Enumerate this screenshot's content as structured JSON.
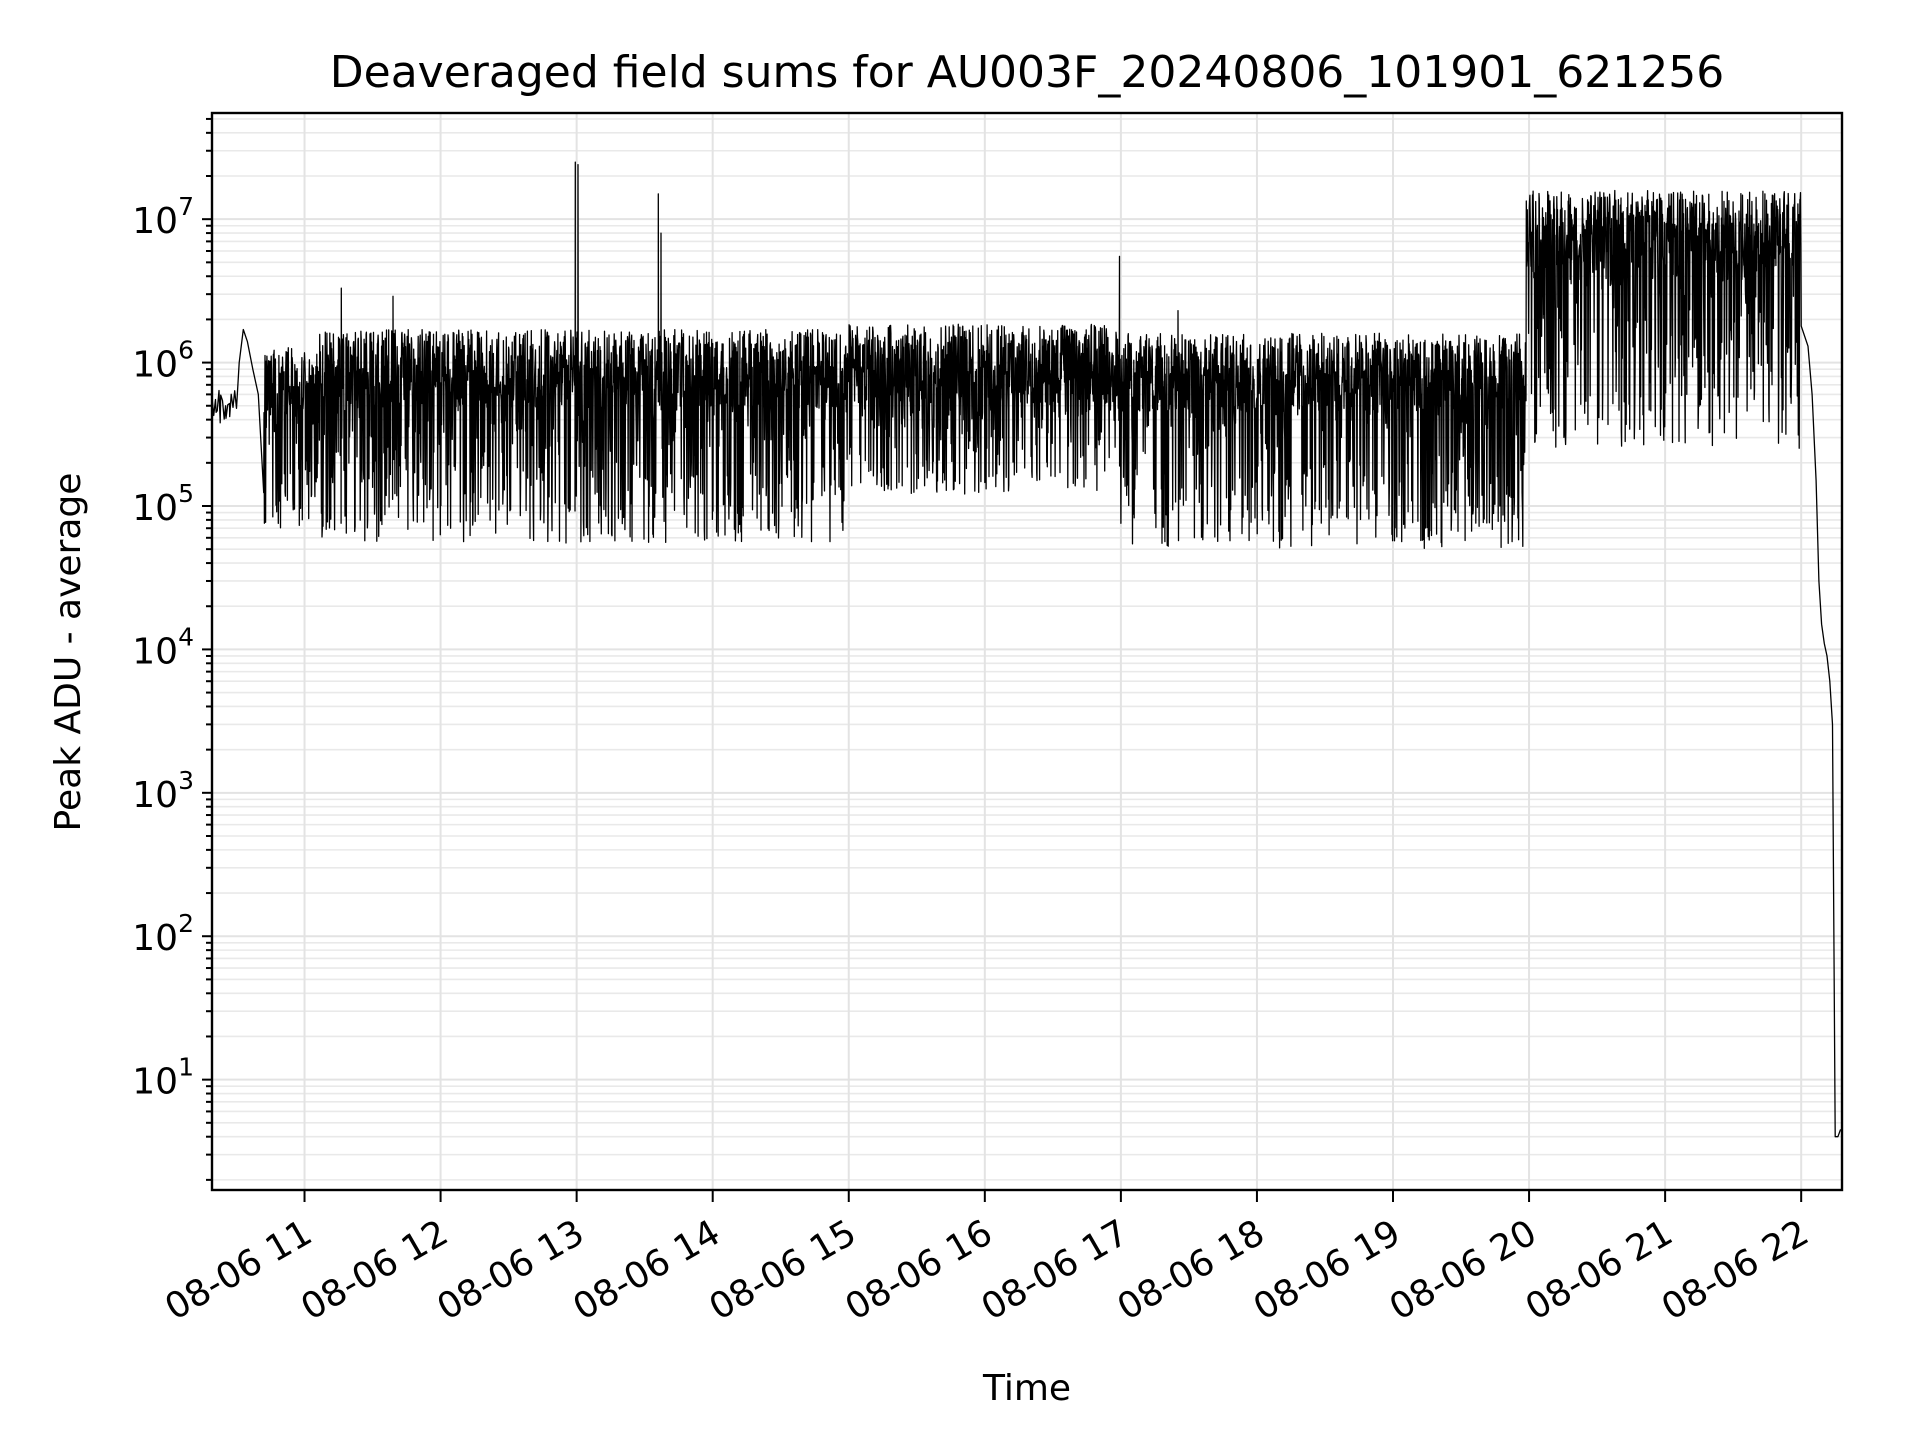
{
  "chart_data": {
    "type": "line",
    "title": "Deaveraged field sums for AU003F_20240806_101901_621256",
    "xlabel": "Time",
    "ylabel": "Peak ADU - average",
    "yscale": "log",
    "ylim": [
      1.7,
      55000000
    ],
    "xlim_hours": [
      10.32,
      22.3
    ],
    "grid": true,
    "line_color": "#000000",
    "x_ticks": [
      {
        "hour": 11,
        "label": "08-06 11"
      },
      {
        "hour": 12,
        "label": "08-06 12"
      },
      {
        "hour": 13,
        "label": "08-06 13"
      },
      {
        "hour": 14,
        "label": "08-06 14"
      },
      {
        "hour": 15,
        "label": "08-06 15"
      },
      {
        "hour": 16,
        "label": "08-06 16"
      },
      {
        "hour": 17,
        "label": "08-06 17"
      },
      {
        "hour": 18,
        "label": "08-06 18"
      },
      {
        "hour": 19,
        "label": "08-06 19"
      },
      {
        "hour": 20,
        "label": "08-06 20"
      },
      {
        "hour": 21,
        "label": "08-06 21"
      },
      {
        "hour": 22,
        "label": "08-06 22"
      }
    ],
    "y_ticks": [
      {
        "value": 10,
        "base": "10",
        "exp": "1"
      },
      {
        "value": 100,
        "base": "10",
        "exp": "2"
      },
      {
        "value": 1000,
        "base": "10",
        "exp": "3"
      },
      {
        "value": 10000,
        "base": "10",
        "exp": "4"
      },
      {
        "value": 100000,
        "base": "10",
        "exp": "5"
      },
      {
        "value": 1000000,
        "base": "10",
        "exp": "6"
      },
      {
        "value": 10000000,
        "base": "10",
        "exp": "7"
      }
    ],
    "segments": [
      {
        "from": 10.32,
        "to": 10.5,
        "top": 650000,
        "bottom": 350000,
        "dense": false
      },
      {
        "from": 10.7,
        "to": 11.1,
        "top": 1300000,
        "bottom": 70000,
        "dense": true
      },
      {
        "from": 11.1,
        "to": 15.0,
        "top": 1700000,
        "bottom": 55000,
        "dense": true
      },
      {
        "from": 15.0,
        "to": 17.0,
        "top": 1850000,
        "bottom": 120000,
        "dense": true
      },
      {
        "from": 17.0,
        "to": 19.98,
        "top": 1600000,
        "bottom": 50000,
        "dense": true
      },
      {
        "from": 19.98,
        "to": 22.0,
        "top": 16000000,
        "bottom": 250000,
        "dense": true
      }
    ],
    "points": [
      [
        10.32,
        400000
      ],
      [
        10.35,
        450000
      ],
      [
        10.38,
        380000
      ],
      [
        10.42,
        500000
      ],
      [
        10.45,
        420000
      ],
      [
        10.5,
        480000
      ],
      [
        10.52,
        1000000
      ],
      [
        10.55,
        1700000
      ],
      [
        10.58,
        1400000
      ],
      [
        10.62,
        900000
      ],
      [
        10.66,
        600000
      ],
      [
        22.0,
        1800000
      ],
      [
        22.05,
        1300000
      ],
      [
        22.08,
        600000
      ],
      [
        22.11,
        150000
      ],
      [
        22.13,
        30000
      ],
      [
        22.15,
        15000
      ],
      [
        22.17,
        11000
      ],
      [
        22.19,
        9000
      ],
      [
        22.21,
        6000
      ],
      [
        22.23,
        3000
      ],
      [
        22.25,
        4
      ],
      [
        22.27,
        4
      ],
      [
        22.29,
        4.5
      ]
    ],
    "spikes": [
      [
        11.27,
        3300000
      ],
      [
        11.65,
        2900000
      ],
      [
        12.99,
        25000000
      ],
      [
        13.01,
        24000000
      ],
      [
        13.6,
        15000000
      ],
      [
        13.62,
        8000000
      ],
      [
        16.99,
        5500000
      ],
      [
        17.42,
        2300000
      ]
    ]
  }
}
